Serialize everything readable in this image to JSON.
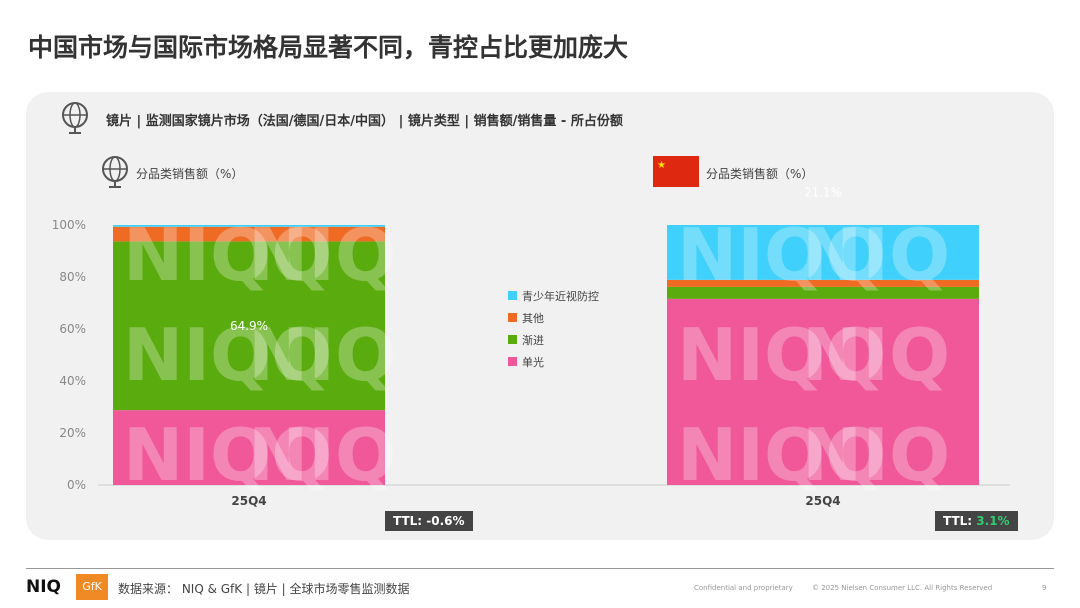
{
  "title": "中国市场与国际市场格局显著不同，青控占比更加庞大",
  "subtitle": "镜片 | 监测国家镜片市场（法国/德国/日本/中国） | 镜片类型 | 销售额/销售量 - 所占份额",
  "chart_data": [
    {
      "type": "bar",
      "stacked": true,
      "icon": "globe-icon",
      "title": "分品类销售额（%）",
      "categories": [
        "25Q4"
      ],
      "yticks": [
        "0%",
        "20%",
        "40%",
        "60%",
        "80%",
        "100%"
      ],
      "ylim": [
        0,
        100
      ],
      "series": [
        {
          "name": "单光",
          "values": [
            28.8
          ],
          "color": "#f0589a"
        },
        {
          "name": "渐进",
          "values": [
            64.9
          ],
          "color": "#5aab0d"
        },
        {
          "name": "其他",
          "values": [
            5.6
          ],
          "color": "#ef6a23"
        },
        {
          "name": "青少年近视防控",
          "values": [
            0.7
          ],
          "color": "#3fd0fb"
        }
      ],
      "data_labels": {
        "渐进": "64.9%"
      },
      "ttl_label": "TTL: ",
      "ttl_value": "-0.6%"
    },
    {
      "type": "bar",
      "stacked": true,
      "icon": "china-flag-icon",
      "title": "分品类销售额（%）",
      "categories": [
        "25Q4"
      ],
      "series": [
        {
          "name": "单光",
          "values": [
            71.6
          ],
          "color": "#f0589a"
        },
        {
          "name": "渐进",
          "values": [
            4.6
          ],
          "color": "#5aab0d"
        },
        {
          "name": "其他",
          "values": [
            2.7
          ],
          "color": "#ef6a23"
        },
        {
          "name": "青少年近视防控",
          "values": [
            21.1
          ],
          "color": "#3fd0fb"
        }
      ],
      "data_labels": {
        "青少年近视防控": "21.1%"
      },
      "ttl_label": "TTL: ",
      "ttl_value": "3.1%"
    }
  ],
  "legend": [
    {
      "name": "青少年近视防控",
      "color": "#3fd0fb"
    },
    {
      "name": "其他",
      "color": "#ef6a23"
    },
    {
      "name": "渐进",
      "color": "#5aab0d"
    },
    {
      "name": "单光",
      "color": "#f0589a"
    }
  ],
  "footer": {
    "niq": "NIQ",
    "gfk": "GfK",
    "source": "数据来源： NIQ & GfK | 镜片 | 全球市场零售监测数据",
    "confidential": "Confidential and proprietary",
    "copyright": "© 2025 Nielsen Consumer LLC. All Rights Reserved",
    "page": "9"
  },
  "watermark": "NIQ"
}
